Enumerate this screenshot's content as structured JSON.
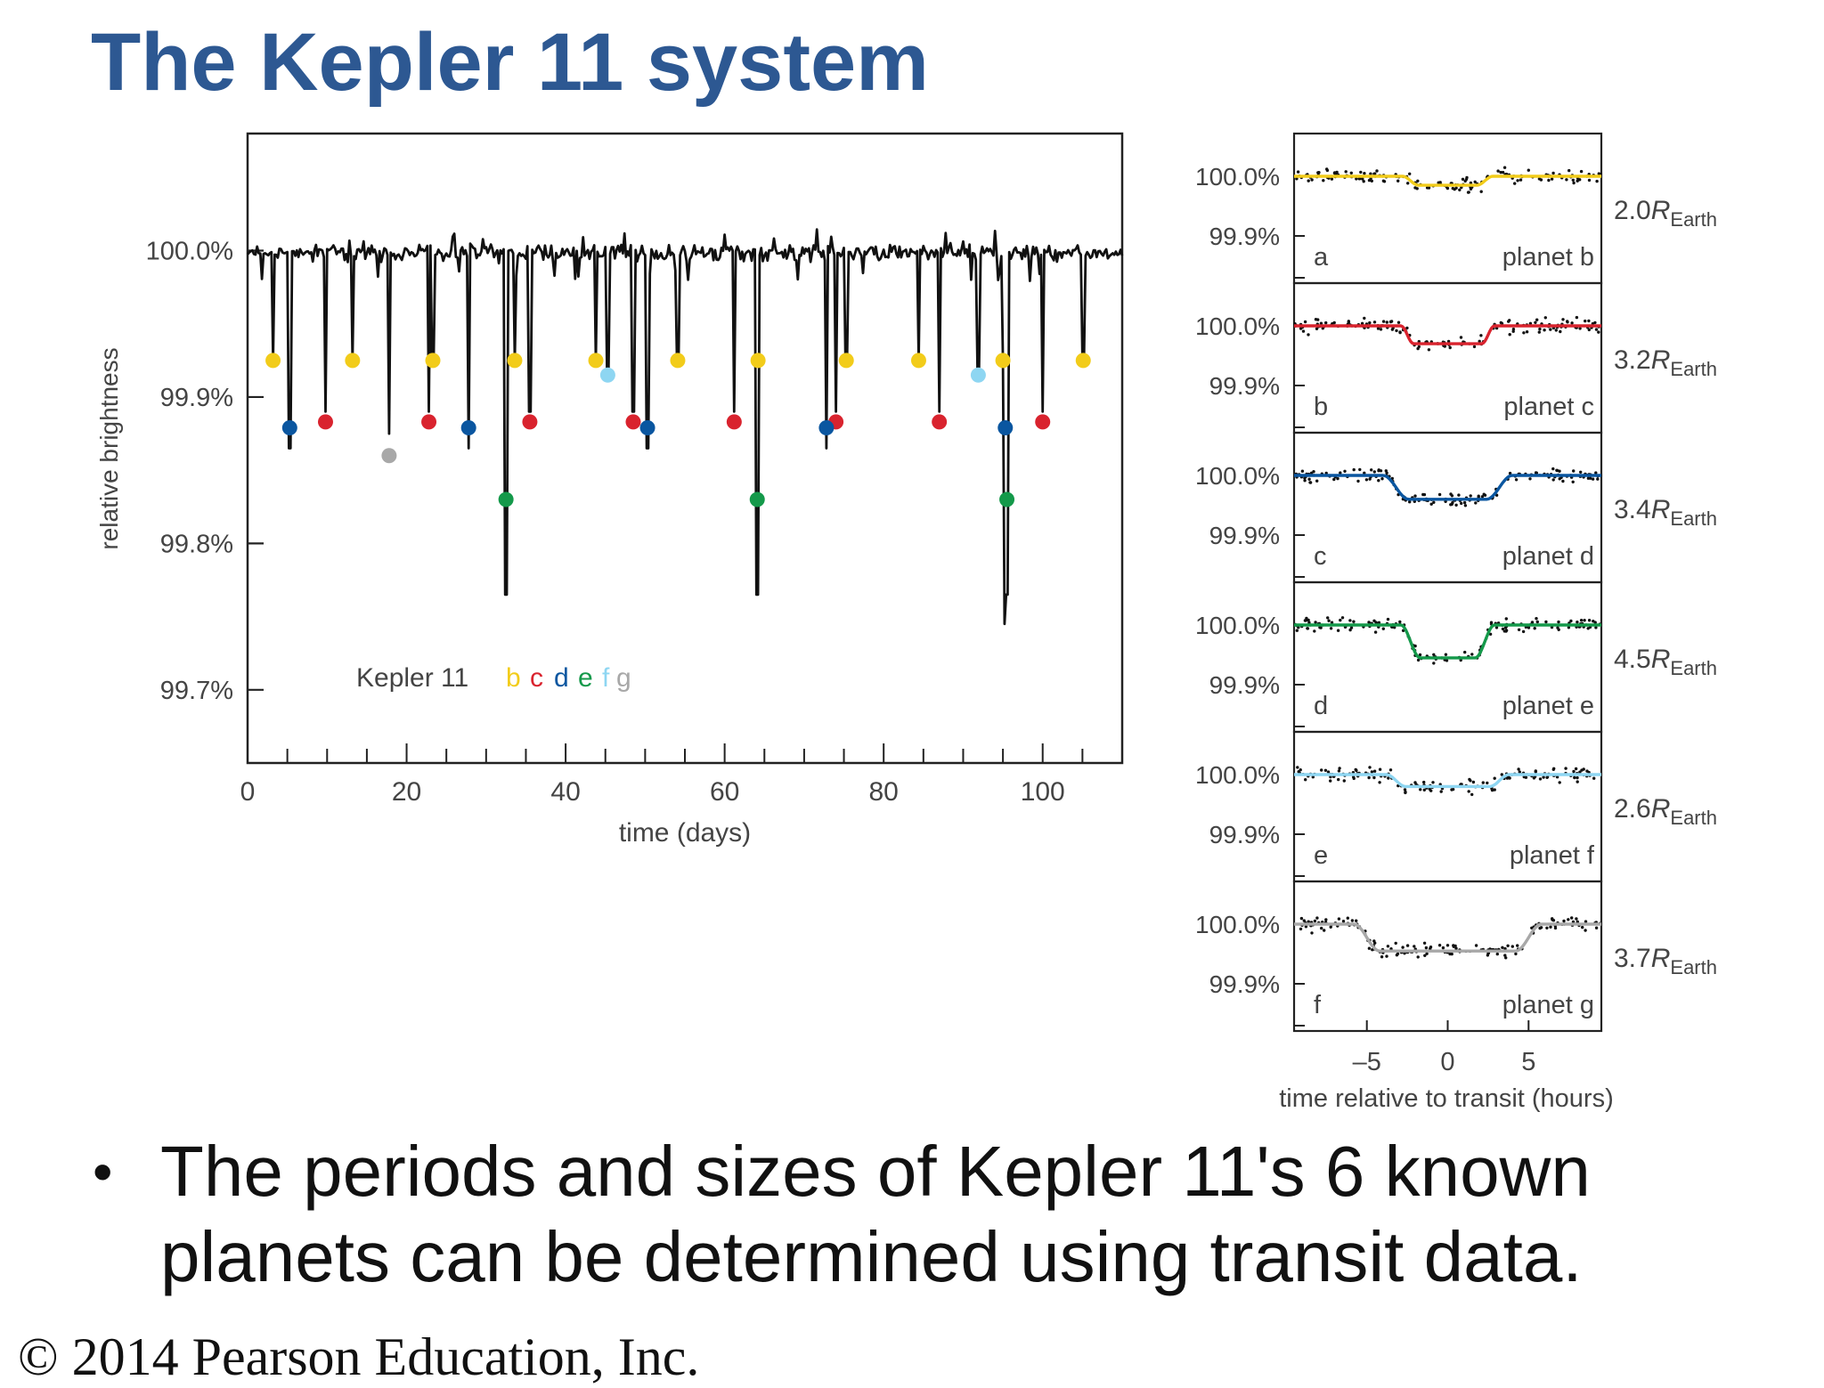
{
  "slide": {
    "title": "The Kepler 11 system",
    "bullet": "The periods and sizes of Kepler 11's 6 known planets can be determined using transit data.",
    "footer": "© 2014 Pearson Education, Inc."
  },
  "colors": {
    "title": "#2d5892",
    "b": "#f2cc1a",
    "c": "#d9232e",
    "d": "#0a56a0",
    "e": "#14994a",
    "f": "#8ed6f2",
    "g": "#a8a8a8",
    "light_curve": "#111111"
  },
  "chart_data": [
    {
      "type": "line",
      "xlabel": "time (days)",
      "ylabel": "relative brightness",
      "xlim": [
        0,
        110
      ],
      "ylim": [
        99.65,
        100.08
      ],
      "x_ticks": [
        0,
        20,
        40,
        60,
        80,
        100
      ],
      "x_tick_labels": [
        "0",
        "20",
        "40",
        "60",
        "80",
        "100"
      ],
      "y_ticks": [
        100.0,
        99.9,
        99.8,
        99.7
      ],
      "y_tick_labels": [
        "100.0%",
        "99.9%",
        "99.8%",
        "99.7%"
      ],
      "grid": false,
      "legend": {
        "label": "Kepler 11",
        "letters": [
          {
            "letter": "b",
            "color": "#f2cc1a"
          },
          {
            "letter": "c",
            "color": "#d9232e"
          },
          {
            "letter": "d",
            "color": "#0a56a0"
          },
          {
            "letter": "e",
            "color": "#14994a"
          },
          {
            "letter": "f",
            "color": "#8ed6f2"
          },
          {
            "letter": "g",
            "color": "#a8a8a8"
          }
        ]
      },
      "baseline": 100.0,
      "transits": [
        {
          "planet": "b",
          "times": [
            3.2,
            13.2,
            23.3,
            33.6,
            43.8,
            54.1,
            64.2,
            75.3,
            84.4,
            95.0,
            105.1
          ],
          "dip": 99.925
        },
        {
          "planet": "c",
          "times": [
            9.8,
            22.8,
            35.5,
            48.5,
            61.2,
            74.0,
            87.0,
            100.0
          ],
          "dip": 99.89
        },
        {
          "planet": "d",
          "times": [
            5.3,
            27.8,
            50.3,
            72.8,
            95.3
          ],
          "dip": 99.865
        },
        {
          "planet": "e",
          "times": [
            32.5,
            64.1,
            95.5
          ],
          "dip": 99.765
        },
        {
          "planet": "f",
          "times": [
            45.3,
            91.9
          ],
          "dip": 99.92
        },
        {
          "planet": "g",
          "times": [
            17.8
          ],
          "dip": 99.875
        }
      ],
      "markers": [
        {
          "planet": "b",
          "x": 3.2,
          "y": 99.925
        },
        {
          "planet": "b",
          "x": 13.2,
          "y": 99.925
        },
        {
          "planet": "b",
          "x": 23.3,
          "y": 99.925
        },
        {
          "planet": "b",
          "x": 33.6,
          "y": 99.925
        },
        {
          "planet": "b",
          "x": 43.8,
          "y": 99.925
        },
        {
          "planet": "b",
          "x": 54.1,
          "y": 99.925
        },
        {
          "planet": "b",
          "x": 64.2,
          "y": 99.925
        },
        {
          "planet": "b",
          "x": 75.3,
          "y": 99.925
        },
        {
          "planet": "b",
          "x": 84.4,
          "y": 99.925
        },
        {
          "planet": "b",
          "x": 95.0,
          "y": 99.925
        },
        {
          "planet": "b",
          "x": 105.1,
          "y": 99.925
        },
        {
          "planet": "c",
          "x": 9.8,
          "y": 99.883
        },
        {
          "planet": "c",
          "x": 22.8,
          "y": 99.883
        },
        {
          "planet": "c",
          "x": 35.5,
          "y": 99.883
        },
        {
          "planet": "c",
          "x": 48.5,
          "y": 99.883
        },
        {
          "planet": "c",
          "x": 61.2,
          "y": 99.883
        },
        {
          "planet": "c",
          "x": 74.0,
          "y": 99.883
        },
        {
          "planet": "c",
          "x": 87.0,
          "y": 99.883
        },
        {
          "planet": "c",
          "x": 100.0,
          "y": 99.883
        },
        {
          "planet": "d",
          "x": 5.3,
          "y": 99.879
        },
        {
          "planet": "d",
          "x": 27.8,
          "y": 99.879
        },
        {
          "planet": "d",
          "x": 50.3,
          "y": 99.879
        },
        {
          "planet": "d",
          "x": 72.8,
          "y": 99.879
        },
        {
          "planet": "d",
          "x": 95.3,
          "y": 99.879
        },
        {
          "planet": "e",
          "x": 32.5,
          "y": 99.83
        },
        {
          "planet": "e",
          "x": 64.1,
          "y": 99.83
        },
        {
          "planet": "e",
          "x": 95.5,
          "y": 99.83
        },
        {
          "planet": "f",
          "x": 45.3,
          "y": 99.915
        },
        {
          "planet": "f",
          "x": 91.9,
          "y": 99.915
        },
        {
          "planet": "g",
          "x": 17.8,
          "y": 99.86
        }
      ]
    },
    {
      "type": "scatter",
      "xlabel": "time relative to transit (hours)",
      "xlim": [
        -9.5,
        9.5
      ],
      "x_ticks": [
        -5,
        0,
        5
      ],
      "x_tick_labels": [
        "–5",
        "0",
        "5"
      ],
      "ylim": [
        99.83,
        100.025
      ],
      "y_tick_labels": [
        "100.0%",
        "99.9%"
      ],
      "y_ticks": [
        100.0,
        99.9
      ],
      "panels": [
        {
          "panel": "a",
          "planet": "planet b",
          "color": "#f2cc1a",
          "radius_value": "2.0",
          "radius_unit": "R",
          "radius_sub": "Earth",
          "depth": 0.015,
          "half_width": 2.3,
          "ingress": 0.5
        },
        {
          "panel": "b",
          "planet": "planet c",
          "color": "#d9232e",
          "radius_value": "3.2",
          "radius_unit": "R",
          "radius_sub": "Earth",
          "depth": 0.03,
          "half_width": 2.5,
          "ingress": 0.4
        },
        {
          "panel": "c",
          "planet": "planet d",
          "color": "#0a56a0",
          "radius_value": "3.4",
          "radius_unit": "R",
          "radius_sub": "Earth",
          "depth": 0.04,
          "half_width": 3.2,
          "ingress": 0.8
        },
        {
          "panel": "d",
          "planet": "planet e",
          "color": "#14994a",
          "radius_value": "4.5",
          "radius_unit": "R",
          "radius_sub": "Earth",
          "depth": 0.055,
          "half_width": 2.3,
          "ingress": 0.6
        },
        {
          "panel": "e",
          "planet": "planet f",
          "color": "#8ed6f2",
          "radius_value": "2.6",
          "radius_unit": "R",
          "radius_sub": "Earth",
          "depth": 0.02,
          "half_width": 3.2,
          "ingress": 0.6
        },
        {
          "panel": "f",
          "planet": "planet g",
          "color": "#a8a8a8",
          "radius_value": "3.7",
          "radius_unit": "R",
          "radius_sub": "Earth",
          "depth": 0.045,
          "half_width": 5.0,
          "ingress": 0.8
        }
      ]
    }
  ]
}
